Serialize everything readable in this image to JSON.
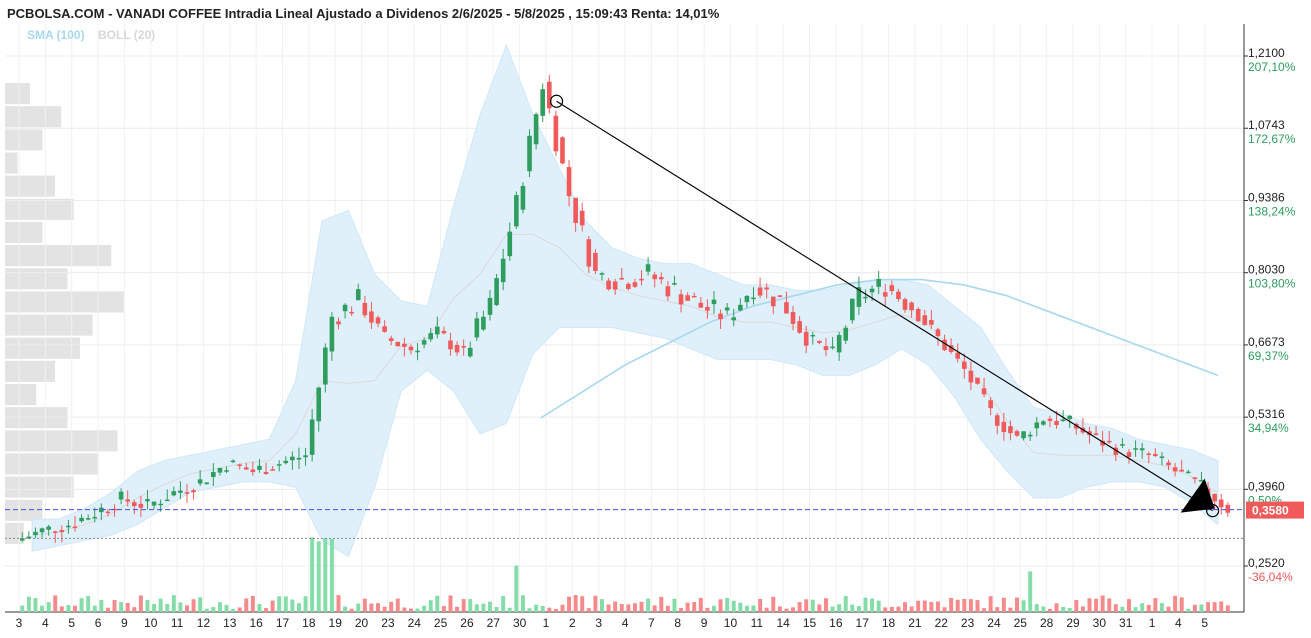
{
  "header": {
    "title": "PCBOLSA.COM - VANADI COFFEE Intradia Lineal Ajustado a Dividenos 2/6/2025 - 5/8/2025 , 15:09:43 Renta: 14,01%",
    "indicator_sma": "SMA (100)",
    "indicator_boll": "BOLL (20)"
  },
  "colors": {
    "up": "#2e9d5e",
    "down": "#f05a5a",
    "band_fill": "#dff0fb",
    "sma_line": "#a8d8f0",
    "volume_up": "#84dca8",
    "volume_down": "#f58a8a",
    "pct_positive": "#2e9d5e",
    "pct_negative": "#f05a5a",
    "current_price_line": "#4a4af0",
    "price_badge": "#f05a5a",
    "sma_label": "#a8d8f0",
    "boll_label": "#d8d8d8"
  },
  "chart_data": {
    "type": "candlestick",
    "title": "PCBOLSA.COM - VANADI COFFEE Intradia Lineal Ajustado a Dividenos 2/6/2025 - 5/8/2025 , 15:09:43 Renta: 14,01%",
    "ylim": [
      0.23,
      1.24
    ],
    "y_ticks": [
      {
        "value": 1.21,
        "label": "1,2100",
        "pct": "207,10%"
      },
      {
        "value": 1.0743,
        "label": "1,0743",
        "pct": "172,67%"
      },
      {
        "value": 0.9386,
        "label": "0,9386",
        "pct": "138,24%"
      },
      {
        "value": 0.803,
        "label": "0,8030",
        "pct": "103,80%"
      },
      {
        "value": 0.6673,
        "label": "0,6673",
        "pct": "69,37%"
      },
      {
        "value": 0.5316,
        "label": "0,5316",
        "pct": "34,94%"
      },
      {
        "value": 0.396,
        "label": "0,3960",
        "pct": "0,50%"
      },
      {
        "value": 0.252,
        "label": "0,2520",
        "pct": "-36,04%"
      }
    ],
    "current_price": {
      "value": 0.358,
      "label": "0,3580"
    },
    "reference_price": 0.394,
    "x_ticks": [
      "3",
      "4",
      "5",
      "6",
      "9",
      "10",
      "11",
      "12",
      "13",
      "16",
      "17",
      "18",
      "19",
      "20",
      "23",
      "24",
      "25",
      "26",
      "27",
      "30",
      "1",
      "2",
      "3",
      "4",
      "7",
      "8",
      "9",
      "10",
      "11",
      "14",
      "15",
      "16",
      "17",
      "18",
      "21",
      "22",
      "23",
      "24",
      "25",
      "28",
      "29",
      "30",
      "31",
      "1",
      "4",
      "5"
    ],
    "daily_close": [
      0.318,
      0.33,
      0.352,
      0.378,
      0.365,
      0.39,
      0.41,
      0.445,
      0.43,
      0.445,
      0.46,
      0.72,
      0.75,
      0.68,
      0.66,
      0.69,
      0.65,
      0.74,
      0.93,
      1.16,
      0.95,
      0.8,
      0.79,
      0.8,
      0.77,
      0.74,
      0.72,
      0.78,
      0.75,
      0.68,
      0.65,
      0.76,
      0.78,
      0.74,
      0.68,
      0.62,
      0.54,
      0.49,
      0.53,
      0.52,
      0.49,
      0.47,
      0.46,
      0.43,
      0.4,
      0.36
    ],
    "series": [
      {
        "name": "SMA (100)",
        "values": [
          0.53,
          0.58,
          0.63,
          0.67,
          0.71,
          0.74,
          0.76,
          0.78,
          0.79,
          0.79,
          0.78,
          0.76,
          0.73,
          0.7,
          0.67,
          0.64,
          0.61
        ]
      },
      {
        "name": "BOLL (20)",
        "upper": [
          0.34,
          0.34,
          0.36,
          0.39,
          0.43,
          0.45,
          0.46,
          0.47,
          0.48,
          0.49,
          0.6,
          0.9,
          0.92,
          0.8,
          0.75,
          0.74,
          0.93,
          1.1,
          1.23,
          1.1,
          1.0,
          0.9,
          0.85,
          0.83,
          0.82,
          0.82,
          0.8,
          0.78,
          0.78,
          0.77,
          0.77,
          0.78,
          0.79,
          0.79,
          0.78,
          0.74,
          0.7,
          0.62,
          0.55,
          0.54,
          0.52,
          0.51,
          0.49,
          0.48,
          0.47,
          0.45
        ],
        "lower": [
          0.28,
          0.29,
          0.3,
          0.31,
          0.33,
          0.36,
          0.39,
          0.4,
          0.41,
          0.41,
          0.4,
          0.3,
          0.27,
          0.4,
          0.58,
          0.62,
          0.58,
          0.5,
          0.52,
          0.65,
          0.7,
          0.7,
          0.7,
          0.69,
          0.68,
          0.66,
          0.64,
          0.64,
          0.64,
          0.63,
          0.61,
          0.61,
          0.63,
          0.66,
          0.63,
          0.57,
          0.49,
          0.43,
          0.38,
          0.38,
          0.4,
          0.41,
          0.41,
          0.4,
          0.37,
          0.33
        ]
      }
    ],
    "trendline": {
      "x_start_day": 20.4,
      "y_start": 1.125,
      "x_end_day": 45.3,
      "y_end": 0.356
    },
    "volume_profile": [
      0.2,
      0.45,
      0.3,
      0.1,
      0.4,
      0.55,
      0.3,
      0.85,
      0.5,
      0.95,
      0.7,
      0.6,
      0.4,
      0.25,
      0.5,
      0.9,
      0.75,
      0.55,
      0.3,
      0.15
    ]
  }
}
